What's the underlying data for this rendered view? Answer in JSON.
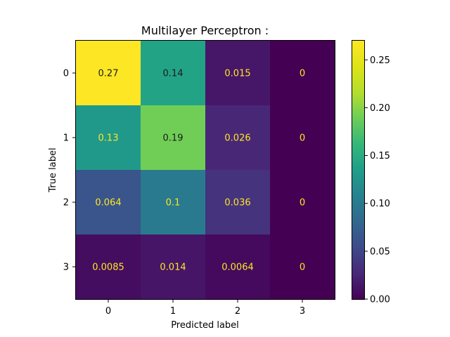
{
  "chart_data": {
    "type": "heatmap",
    "title": "Multilayer Perceptron :",
    "xlabel": "Predicted label",
    "ylabel": "True label",
    "x_categories": [
      "0",
      "1",
      "2",
      "3"
    ],
    "y_categories": [
      "0",
      "1",
      "2",
      "3"
    ],
    "values": [
      [
        0.27,
        0.14,
        0.015,
        0
      ],
      [
        0.13,
        0.19,
        0.026,
        0
      ],
      [
        0.064,
        0.1,
        0.036,
        0
      ],
      [
        0.0085,
        0.014,
        0.0064,
        0
      ]
    ],
    "value_labels": [
      [
        "0.27",
        "0.14",
        "0.015",
        "0"
      ],
      [
        "0.13",
        "0.19",
        "0.026",
        "0"
      ],
      [
        "0.064",
        "0.1",
        "0.036",
        "0"
      ],
      [
        "0.0085",
        "0.014",
        "0.0064",
        "0"
      ]
    ],
    "colorscale": "viridis",
    "colorbar": {
      "range": [
        0,
        0.27
      ],
      "ticks": [
        0.0,
        0.05,
        0.1,
        0.15,
        0.2,
        0.25
      ],
      "tick_labels": [
        "0.00",
        "0.05",
        "0.10",
        "0.15",
        "0.20",
        "0.25"
      ]
    },
    "label_colors": {
      "on_dark": "#fde725",
      "on_light": "#1a1a1a"
    },
    "grid": false
  }
}
